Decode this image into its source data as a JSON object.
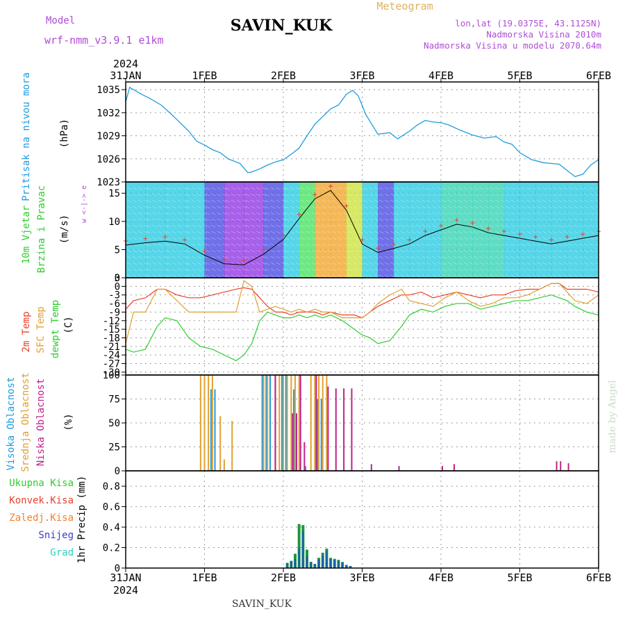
{
  "header": {
    "model_label": "Model",
    "model_name": "wrf-nmm_v3.9.1 e1km",
    "station": "SAVIN_KUK",
    "meteogram": "Meteogram",
    "lonlat": "lon,lat (19.0375E, 43.1125N)",
    "elevation": "Nadmorska Visina 2010m",
    "model_elevation": "Nadmorska Visina u modelu 2070.64m",
    "year_top": "2024",
    "year_bottom": "2024",
    "footer_station": "SAVIN_KUK",
    "credit": "made by Angel"
  },
  "colors": {
    "pressure": "#1e9be0",
    "temp2m": "#e8402c",
    "sfc_temp": "#e0a030",
    "dewpt": "#2ecc2e",
    "high_cloud": "#1e9be0",
    "mid_cloud": "#e0a030",
    "low_cloud": "#c0208a",
    "total_precip": "#1a9a3a",
    "snow": "#3a3acc",
    "grad": "#2ccfc0"
  },
  "x_axis": [
    "31JAN",
    "1FEB",
    "2FEB",
    "3FEB",
    "4FEB",
    "5FEB",
    "6FEB"
  ],
  "chart_data": [
    {
      "type": "line",
      "name": "pressure",
      "ylabel_main": "Pritisak na nivou mora",
      "ylabel_unit": "(hPa)",
      "ylim": [
        1023,
        1036
      ],
      "yticks": [
        1023,
        1026,
        1029,
        1032,
        1035
      ],
      "x": [
        0,
        0.05,
        0.1,
        0.2,
        0.3,
        0.45,
        0.6,
        0.7,
        0.8,
        0.9,
        1.0,
        1.1,
        1.2,
        1.3,
        1.45,
        1.55,
        1.6,
        1.7,
        1.8,
        1.9,
        2.0,
        2.1,
        2.2,
        2.3,
        2.4,
        2.5,
        2.6,
        2.7,
        2.8,
        2.88,
        2.95,
        3.05,
        3.2,
        3.35,
        3.45,
        3.6,
        3.7,
        3.8,
        3.9,
        4.0,
        4.1,
        4.25,
        4.4,
        4.55,
        4.7,
        4.8,
        4.9,
        5.0,
        5.15,
        5.3,
        5.4,
        5.5,
        5.6,
        5.7,
        5.8,
        5.9,
        6.0
      ],
      "series": [
        {
          "values": [
            1033.4,
            1035.3,
            1035.0,
            1034.4,
            1033.9,
            1033.0,
            1031.6,
            1030.6,
            1029.6,
            1028.3,
            1027.8,
            1027.2,
            1026.8,
            1026.0,
            1025.4,
            1024.2,
            1024.3,
            1024.7,
            1025.2,
            1025.6,
            1025.9,
            1026.6,
            1027.4,
            1029.0,
            1030.5,
            1031.5,
            1032.5,
            1033.0,
            1034.4,
            1034.9,
            1034.2,
            1031.7,
            1029.2,
            1029.4,
            1028.6,
            1029.6,
            1030.4,
            1031.0,
            1030.8,
            1030.7,
            1030.4,
            1029.7,
            1029.1,
            1028.7,
            1028.9,
            1028.2,
            1027.9,
            1026.8,
            1025.9,
            1025.5,
            1025.4,
            1025.3,
            1024.5,
            1023.7,
            1024.0,
            1025.2,
            1025.9
          ]
        }
      ]
    },
    {
      "type": "heatmap",
      "name": "wind",
      "ylabel_main": "10m Vjetar",
      "ylabel_sub": "Brzina i Pravac",
      "ylabel_unit": "(m/s)",
      "direction_legend": "w  <-|->  e",
      "ylim": [
        0,
        17
      ],
      "yticks": [
        0,
        5,
        10,
        15
      ],
      "x": [
        0,
        0.25,
        0.5,
        0.75,
        1.0,
        1.25,
        1.5,
        1.75,
        2.0,
        2.2,
        2.4,
        2.6,
        2.8,
        3.0,
        3.2,
        3.4,
        3.6,
        3.8,
        4.0,
        4.2,
        4.4,
        4.6,
        4.8,
        5.0,
        5.2,
        5.4,
        5.6,
        5.8,
        6.0
      ],
      "series": [
        {
          "name": "wind_speed",
          "values": [
            5.8,
            6.2,
            6.5,
            6.0,
            4.0,
            2.5,
            2.3,
            4.2,
            6.8,
            10.5,
            14.0,
            15.5,
            12.0,
            6.0,
            4.5,
            5.2,
            6.0,
            7.5,
            8.5,
            9.5,
            9.0,
            8.0,
            7.5,
            7.0,
            6.5,
            6.0,
            6.5,
            7.0,
            7.5
          ]
        }
      ]
    },
    {
      "type": "line",
      "name": "temperature",
      "ylabel_1": "2m Temp",
      "ylabel_2": "SFC Temp",
      "ylabel_3": "dewpt Temp",
      "ylabel_unit": "(C)",
      "ylim": [
        -31,
        3
      ],
      "yticks": [
        3,
        0,
        -3,
        -6,
        -9,
        -12,
        -15,
        -18,
        -21,
        -24,
        -27,
        -30
      ],
      "x": [
        0,
        0.1,
        0.25,
        0.4,
        0.5,
        0.65,
        0.8,
        0.95,
        1.1,
        1.25,
        1.4,
        1.5,
        1.6,
        1.7,
        1.8,
        1.9,
        2.0,
        2.1,
        2.2,
        2.3,
        2.4,
        2.5,
        2.6,
        2.75,
        2.9,
        3.0,
        3.1,
        3.2,
        3.35,
        3.5,
        3.6,
        3.75,
        3.9,
        4.05,
        4.2,
        4.35,
        4.5,
        4.65,
        4.8,
        4.95,
        5.1,
        5.25,
        5.4,
        5.5,
        5.6,
        5.7,
        5.85,
        6.0
      ],
      "series": [
        {
          "name": "2m Temp",
          "values": [
            -8,
            -5,
            -4,
            -1,
            -1,
            -3,
            -4,
            -4,
            -3,
            -2,
            -1,
            -0.5,
            -1,
            -4,
            -7,
            -9,
            -9,
            -10,
            -9,
            -9,
            -9,
            -10,
            -9,
            -10,
            -10,
            -11,
            -9,
            -7,
            -5,
            -3,
            -3,
            -2,
            -4,
            -3,
            -2,
            -3,
            -4,
            -3,
            -3,
            -1.5,
            -1,
            -1,
            1,
            1,
            -1,
            -1,
            -1,
            -2
          ]
        },
        {
          "name": "SFC Temp",
          "values": [
            -20,
            -9,
            -9,
            -1,
            -1,
            -5,
            -9,
            -9,
            -9,
            -9,
            -9,
            2,
            0,
            -9,
            -8,
            -7,
            -8,
            -9,
            -8,
            -9,
            -8,
            -9,
            -9,
            -11,
            -11,
            -11,
            -9,
            -6,
            -3,
            -1,
            -5,
            -6,
            -7,
            -4,
            -2,
            -5,
            -7,
            -6,
            -4,
            -4,
            -3,
            -1,
            1,
            1,
            -2,
            -5,
            -6,
            -3
          ]
        },
        {
          "name": "dewpt Temp",
          "values": [
            -22,
            -23,
            -22,
            -14,
            -11,
            -12,
            -18,
            -21,
            -22,
            -24,
            -26,
            -24,
            -20,
            -12,
            -9,
            -10,
            -11,
            -11,
            -10,
            -11,
            -10,
            -11,
            -10,
            -12,
            -15,
            -17,
            -18,
            -20,
            -19,
            -14,
            -10,
            -8,
            -9,
            -7,
            -6,
            -6,
            -8,
            -7,
            -6,
            -5,
            -5,
            -4,
            -3,
            -4,
            -5,
            -7,
            -9,
            -10
          ]
        }
      ]
    },
    {
      "type": "bar",
      "name": "cloud_cover",
      "ylabel_1": "Visoka Oblacnost",
      "ylabel_2": "Srednja Oblacnost",
      "ylabel_3": "Niska Oblacnost",
      "ylabel_unit": "(%)",
      "ylim": [
        0,
        100
      ],
      "yticks": [
        0,
        25,
        50,
        75,
        100
      ],
      "series": [
        {
          "name": "Visoka Oblacnost",
          "x": [
            1.1,
            1.15,
            1.75,
            1.8,
            1.85,
            2.0,
            2.05,
            2.15,
            2.3,
            2.45,
            2.5
          ],
          "values": [
            85,
            85,
            100,
            100,
            100,
            100,
            100,
            85,
            5,
            75,
            75
          ]
        },
        {
          "name": "Srednja Oblacnost",
          "x": [
            0.95,
            1.0,
            1.05,
            1.1,
            1.2,
            1.25,
            1.35,
            1.75,
            1.8,
            1.9,
            1.95,
            2.0,
            2.05,
            2.1,
            2.15,
            2.2,
            2.35,
            2.4,
            2.45,
            2.5,
            2.55
          ],
          "values": [
            100,
            100,
            100,
            100,
            57,
            12,
            52,
            100,
            100,
            100,
            100,
            100,
            100,
            100,
            100,
            100,
            100,
            100,
            100,
            100,
            100
          ]
        },
        {
          "name": "Niska Oblacnost",
          "x": [
            1.88,
            2.1,
            2.15,
            2.2,
            2.25,
            2.4,
            2.55,
            2.65,
            2.75,
            2.85,
            3.1,
            3.45,
            4.0,
            4.15,
            5.45,
            5.5,
            5.6
          ],
          "values": [
            100,
            60,
            60,
            100,
            30,
            100,
            88,
            86,
            86,
            86,
            7,
            5,
            5,
            7,
            10,
            10,
            8
          ]
        }
      ]
    },
    {
      "type": "bar",
      "name": "precipitation",
      "ylabel_unit": "1hr Precip (mm)",
      "legend": [
        "Ukupna Kisa",
        "Konvek.Kisa",
        "Zaledj.Kisa",
        "Snijeg",
        "Grad"
      ],
      "ylim": [
        0,
        0.95
      ],
      "yticks": [
        0,
        0.2,
        0.4,
        0.6,
        0.8
      ],
      "x": [
        2.05,
        2.1,
        2.15,
        2.2,
        2.25,
        2.3,
        2.35,
        2.4,
        2.45,
        2.5,
        2.55,
        2.6,
        2.65,
        2.7,
        2.75,
        2.8,
        2.85
      ],
      "series": [
        {
          "name": "Ukupna Kisa",
          "values": [
            0.05,
            0.07,
            0.14,
            0.43,
            0.42,
            0.18,
            0.06,
            0.04,
            0.1,
            0.15,
            0.19,
            0.1,
            0.09,
            0.08,
            0.06,
            0.03,
            0.02
          ]
        },
        {
          "name": "Snijeg",
          "values": [
            0.05,
            0.07,
            0.09,
            0.2,
            0.36,
            0.12,
            0.06,
            0.04,
            0.08,
            0.12,
            0.17,
            0.09,
            0.08,
            0.07,
            0.05,
            0.03,
            0.02
          ]
        }
      ]
    }
  ]
}
